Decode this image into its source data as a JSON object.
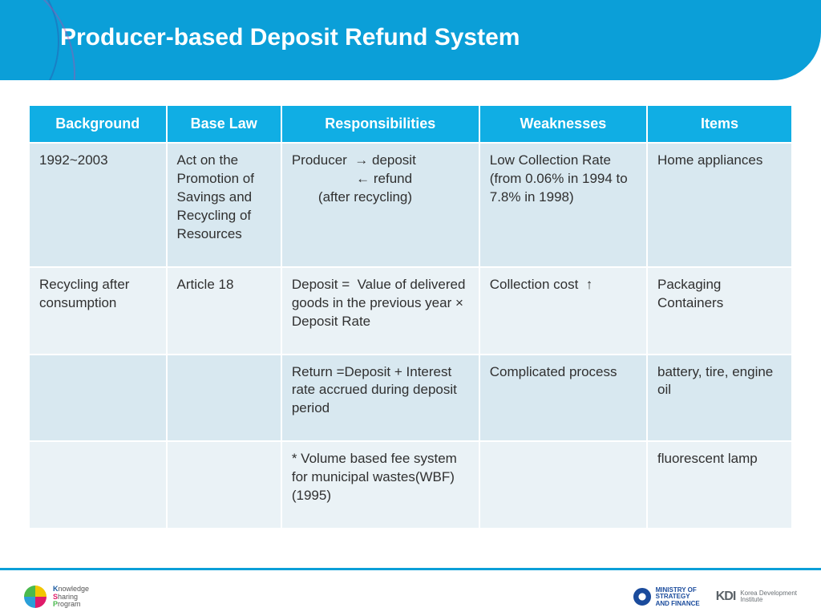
{
  "title": "Producer-based Deposit Refund System",
  "colors": {
    "header_bg": "#0b9fd8",
    "th_bg": "#10aee4",
    "row_odd": "#d8e8f0",
    "row_even": "#eaf2f6",
    "text": "#303030",
    "th_text": "#ffffff",
    "footer_rule": "#0b9fd8"
  },
  "table": {
    "col_widths_pct": [
      18,
      15,
      26,
      22,
      19
    ],
    "headers": [
      "Background",
      "Base Law",
      "Responsibilities",
      "Weaknesses",
      "Items"
    ],
    "rows": [
      [
        "1992~2003",
        "Act on the Promotion of Savings and Recycling of Resources",
        "Producer  → deposit\n                 ← refund\n       (after recycling)",
        "Low Collection Rate (from 0.06% in 1994 to 7.8% in 1998)",
        "Home appliances"
      ],
      [
        "Recycling after consumption",
        "Article 18",
        "Deposit =  Value of delivered goods in the previous year × Deposit Rate",
        "Collection cost  ↑",
        "Packaging Containers"
      ],
      [
        "",
        "",
        "Return =Deposit + Interest rate accrued during deposit period",
        "Complicated process",
        "battery, tire, engine oil"
      ],
      [
        "",
        "",
        "* Volume based fee system for municipal wastes(WBF) (1995)",
        "",
        "fluorescent lamp"
      ]
    ]
  },
  "footer": {
    "ksp_lines": [
      "Knowledge",
      "Sharing",
      "Program"
    ],
    "mosf": "MINISTRY OF\nSTRATEGY\nAND FINANCE",
    "kdi_main": "KDI",
    "kdi_sub": "Korea Development\nInstitute"
  }
}
